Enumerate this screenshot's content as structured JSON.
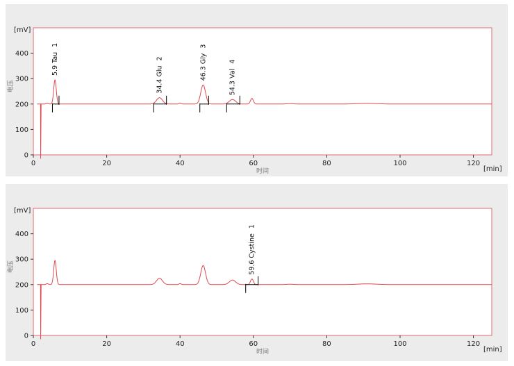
{
  "chart_data": [
    {
      "type": "line",
      "x_unit": "[min]",
      "y_unit": "[mV]",
      "xlabel": "时间",
      "ylabel": "电压",
      "xlim": [
        0,
        125
      ],
      "ylim": [
        0,
        500
      ],
      "x_ticks": [
        0,
        20,
        40,
        60,
        80,
        100,
        120
      ],
      "y_ticks": [
        0,
        100,
        200,
        300,
        400
      ],
      "grid": false,
      "line_color": "#e0474c",
      "baseline": 200,
      "injection": {
        "x": 2.0,
        "min": -15
      },
      "peaks": [
        {
          "rt": 3.8,
          "height": 4,
          "width": 0.3
        },
        {
          "rt": 5.9,
          "height": 95,
          "width": 0.35
        },
        {
          "rt": 34.4,
          "height": 25,
          "width": 0.8
        },
        {
          "rt": 40.0,
          "height": 4,
          "width": 0.3
        },
        {
          "rt": 46.3,
          "height": 75,
          "width": 0.65
        },
        {
          "rt": 54.3,
          "height": 18,
          "width": 0.85
        },
        {
          "rt": 59.6,
          "height": 22,
          "width": 0.4
        },
        {
          "rt": 70.0,
          "height": 1.5,
          "width": 1.0
        },
        {
          "rt": 91.0,
          "height": 3,
          "width": 2.5
        }
      ],
      "annotations": [
        {
          "text": "5.9 Tau",
          "num": "1",
          "x": 5.9,
          "start": 5.2,
          "end": 7.0
        },
        {
          "text": "34.4 Glu",
          "num": "2",
          "x": 34.4,
          "start": 32.8,
          "end": 36.3
        },
        {
          "text": "46.3 Gly",
          "num": "3",
          "x": 46.3,
          "start": 45.4,
          "end": 47.8
        },
        {
          "text": "54.3 Val",
          "num": "4",
          "x": 54.3,
          "start": 52.7,
          "end": 56.3
        }
      ]
    },
    {
      "type": "line",
      "x_unit": "[min]",
      "y_unit": "[mV]",
      "xlabel": "时间",
      "ylabel": "电压",
      "xlim": [
        0,
        125
      ],
      "ylim": [
        0,
        500
      ],
      "x_ticks": [
        0,
        20,
        40,
        60,
        80,
        100,
        120
      ],
      "y_ticks": [
        0,
        100,
        200,
        300,
        400
      ],
      "grid": false,
      "line_color": "#e0474c",
      "baseline": 200,
      "injection": {
        "x": 2.0,
        "min": -15
      },
      "peaks": [
        {
          "rt": 3.8,
          "height": 4,
          "width": 0.3
        },
        {
          "rt": 5.9,
          "height": 95,
          "width": 0.35
        },
        {
          "rt": 34.4,
          "height": 25,
          "width": 0.8
        },
        {
          "rt": 40.0,
          "height": 4,
          "width": 0.3
        },
        {
          "rt": 46.3,
          "height": 75,
          "width": 0.65
        },
        {
          "rt": 54.3,
          "height": 18,
          "width": 0.85
        },
        {
          "rt": 59.6,
          "height": 22,
          "width": 0.4
        },
        {
          "rt": 70.0,
          "height": 1.5,
          "width": 1.0
        },
        {
          "rt": 91.0,
          "height": 3,
          "width": 2.5
        }
      ],
      "annotations": [
        {
          "text": "59.6 Cystine",
          "num": "1",
          "x": 59.6,
          "start": 57.9,
          "end": 61.3
        }
      ]
    }
  ]
}
